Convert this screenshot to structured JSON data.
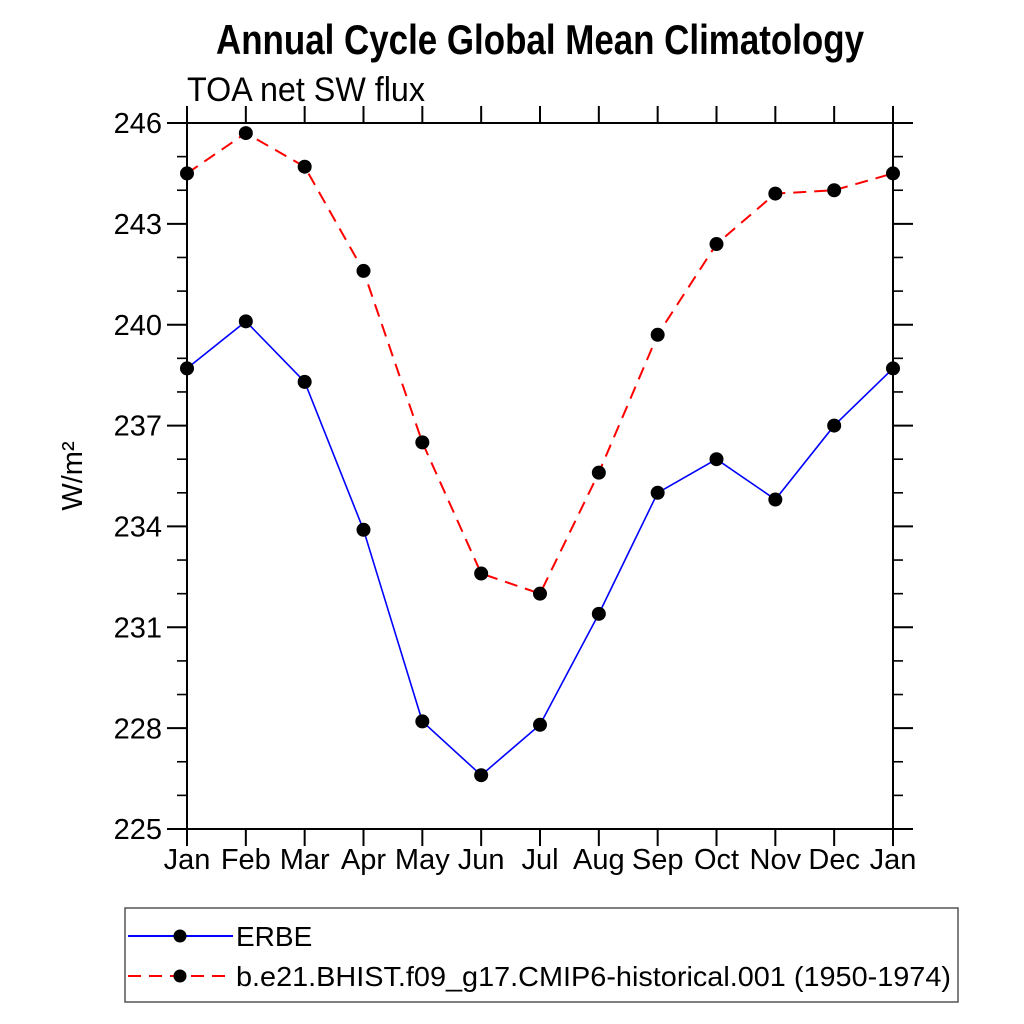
{
  "title": "Annual Cycle Global Mean Climatology",
  "subtitle": "TOA net SW flux",
  "chart_data": {
    "type": "line",
    "title": "Annual Cycle Global Mean Climatology",
    "subtitle": "TOA net SW flux",
    "xlabel": "",
    "ylabel": "W/m²",
    "x_categories": [
      "Jan",
      "Feb",
      "Mar",
      "Apr",
      "May",
      "Jun",
      "Jul",
      "Aug",
      "Sep",
      "Oct",
      "Nov",
      "Dec",
      "Jan"
    ],
    "ylim": [
      225,
      246
    ],
    "yticks_major": [
      225,
      228,
      231,
      234,
      237,
      240,
      243,
      246
    ],
    "ytick_minor_interval": 1,
    "grid": false,
    "legend_position": "bottom-left-box",
    "axis_color": "#000000",
    "marker_color": "#000000",
    "series": [
      {
        "name": "ERBE",
        "color": "#0000ff",
        "line_style": "solid",
        "marker": "filled-circle",
        "values": [
          238.7,
          240.1,
          238.3,
          233.9,
          228.2,
          226.6,
          228.1,
          231.4,
          235.0,
          236.0,
          234.8,
          237.0,
          238.7
        ]
      },
      {
        "name": "b.e21.BHIST.f09_g17.CMIP6-historical.001 (1950-1974)",
        "color": "#ff0000",
        "line_style": "dashed",
        "marker": "filled-circle",
        "values": [
          244.5,
          245.7,
          244.7,
          241.6,
          236.5,
          232.6,
          232.0,
          235.6,
          239.7,
          242.4,
          243.9,
          244.0,
          244.5
        ]
      }
    ]
  }
}
